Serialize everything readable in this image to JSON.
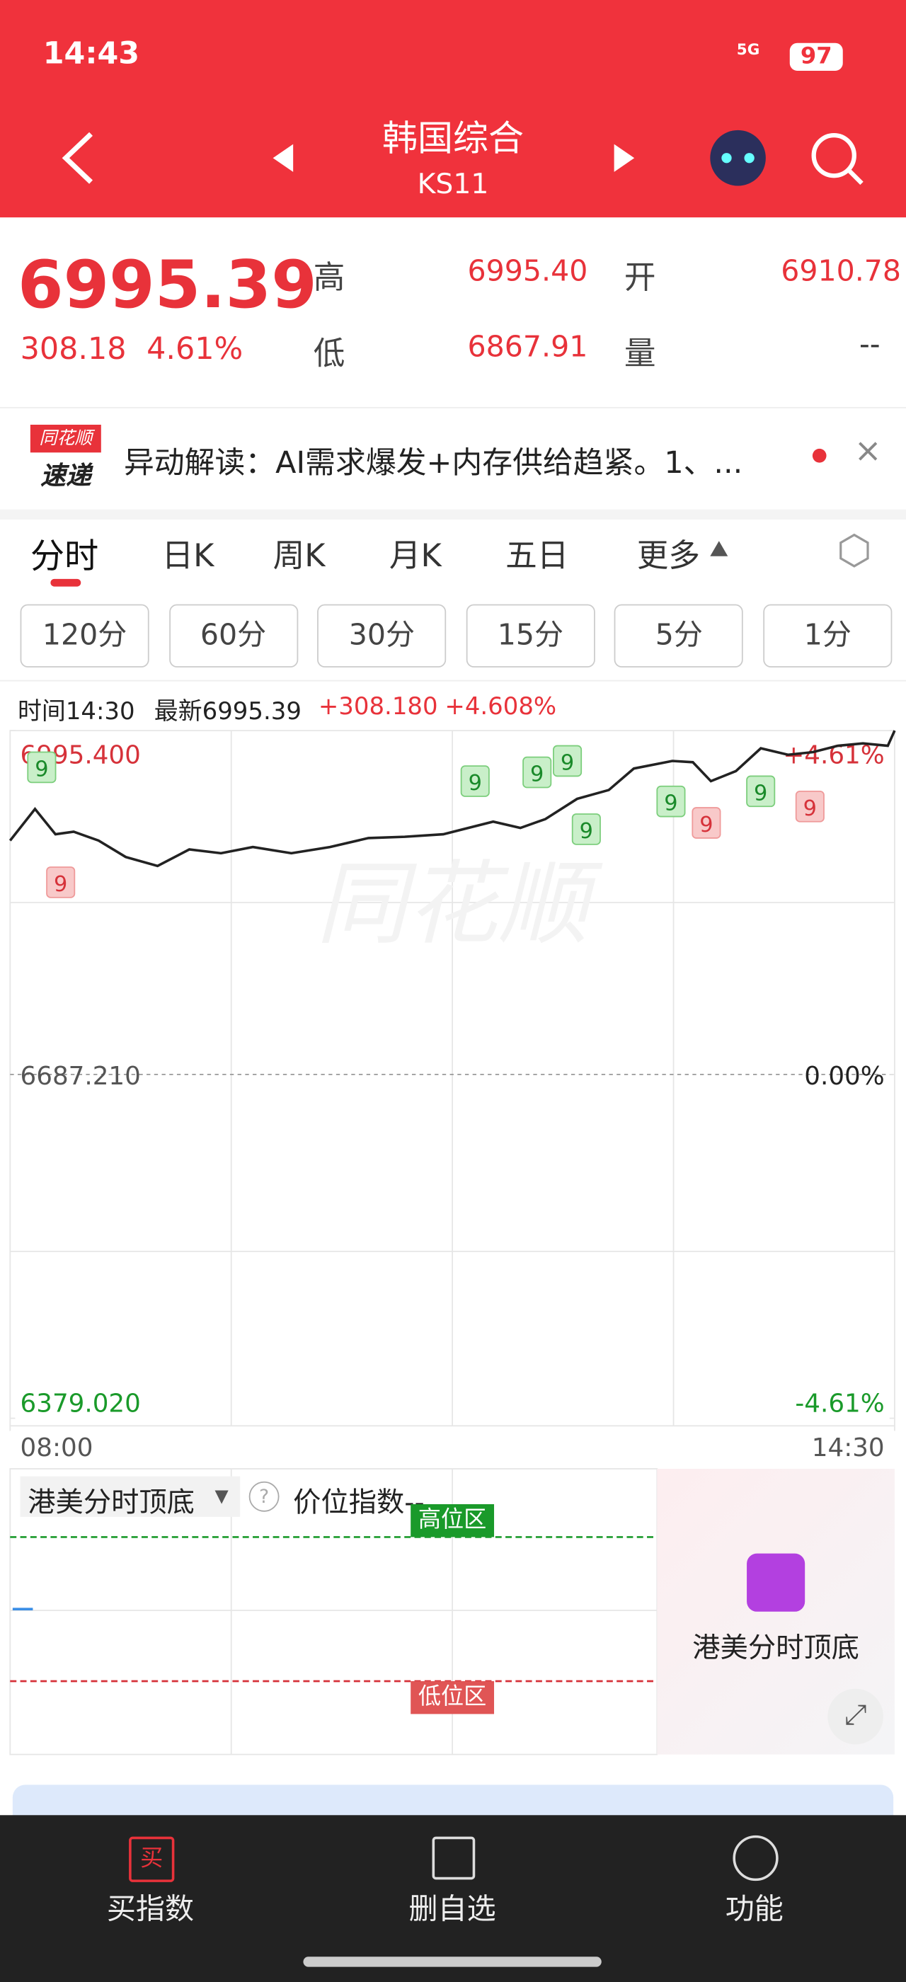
{
  "status": {
    "time": "14:43",
    "network": "5G",
    "battery": "97"
  },
  "header": {
    "title": "韩国综合",
    "code": "KS11"
  },
  "quote": {
    "price": "6995.39",
    "change": "308.18",
    "change_pct": "4.61%",
    "high_label": "高",
    "high": "6995.40",
    "open_label": "开",
    "open": "6910.78",
    "low_label": "低",
    "low": "6867.91",
    "volume_label": "量",
    "volume": "--"
  },
  "news": {
    "badge_top": "同花顺",
    "badge_bottom": "速递",
    "text": "异动解读：AI需求爆发+内存供给趋紧。1、..."
  },
  "tabs": [
    "分时",
    "日K",
    "周K",
    "月K",
    "五日",
    "更多"
  ],
  "periods": [
    "120分",
    "60分",
    "30分",
    "15分",
    "5分",
    "1分"
  ],
  "info": {
    "time": "时间14:30",
    "latest": "最新6995.39",
    "change": "+308.180",
    "pct": "+4.608%"
  },
  "chart_data": {
    "type": "line",
    "watermark": "同花顺",
    "x": [
      0,
      11,
      20,
      28,
      39,
      51,
      65,
      79,
      93,
      107,
      124,
      141,
      158,
      174,
      191,
      202,
      213,
      225,
      236,
      250,
      264,
      275,
      292,
      301,
      309,
      320,
      331,
      343,
      354,
      365,
      376,
      387,
      390
    ],
    "series": [
      {
        "color": "#222222",
        "values": [
          6896.8,
          6925.1,
          6902.5,
          6904.7,
          6896.8,
          6882.1,
          6874.1,
          6888.9,
          6885.5,
          6891.1,
          6885.5,
          6891.1,
          6899.1,
          6900.2,
          6902.5,
          6908.1,
          6913.8,
          6908.1,
          6916.1,
          6934.2,
          6942.1,
          6961.4,
          6968.2,
          6967.1,
          6950.1,
          6959.1,
          6979.5,
          6973.8,
          6976.1,
          6981.8,
          6984.0,
          6981.8,
          6995.4
        ]
      }
    ],
    "xlim": [
      0,
      390
    ],
    "xticks": [
      {
        "value": 0,
        "label": "08:00"
      },
      {
        "value": 390,
        "label": "14:30"
      }
    ],
    "ylim": [
      6379.02,
      6995.4
    ],
    "yticks": [
      {
        "value": 6995.4,
        "label": "6995.400"
      },
      {
        "value": 6687.21,
        "label": "6687.210"
      },
      {
        "value": 6379.02,
        "label": "6379.020"
      }
    ],
    "y2lim": [
      -4.61,
      4.61
    ],
    "y2ticks": [
      {
        "value": 4.61,
        "label": "+4.61%"
      },
      {
        "value": 0,
        "label": "0.00%"
      },
      {
        "value": -4.61,
        "label": "-4.61%"
      }
    ],
    "markers": [
      "9",
      "9",
      "9",
      "9",
      "9",
      "9",
      "9",
      "9",
      "9",
      "9"
    ]
  },
  "indicator": {
    "name": "港美分时顶底",
    "index_label": "价位指数--",
    "high_zone": "高位区",
    "low_zone": "低位区",
    "promo": "港美分时顶底"
  },
  "bottom_nav": {
    "buy_icon": "买",
    "items": [
      "买指数",
      "删自选",
      "功能"
    ]
  }
}
